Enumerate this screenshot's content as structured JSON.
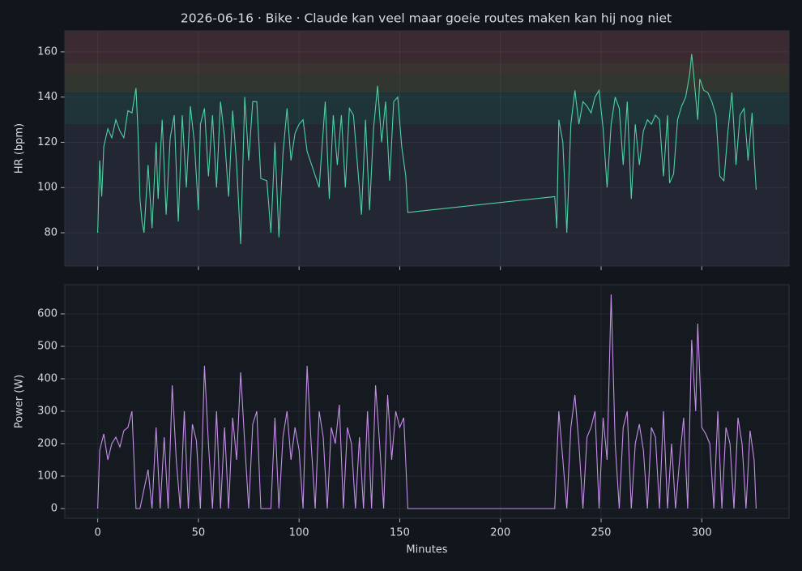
{
  "chart_data": [
    {
      "type": "line",
      "title": "2026-06-16 · Bike · Claude kan veel maar goeie routes maken kan hij nog niet",
      "ylabel": "HR (bpm)",
      "color": "#4fd1a5",
      "x": [
        0,
        1,
        2,
        3,
        5,
        7,
        9,
        11,
        13,
        15,
        17,
        19,
        20,
        21,
        22,
        23,
        25,
        27,
        29,
        30,
        32,
        34,
        36,
        38,
        40,
        42,
        44,
        46,
        48,
        50,
        51,
        53,
        55,
        57,
        59,
        61,
        63,
        65,
        67,
        69,
        71,
        73,
        75,
        77,
        79,
        81,
        84,
        86,
        88,
        90,
        92,
        94,
        96,
        98,
        100,
        102,
        104,
        107,
        110,
        113,
        115,
        117,
        119,
        121,
        123,
        125,
        127,
        129,
        131,
        133,
        135,
        137,
        139,
        141,
        143,
        145,
        147,
        149,
        151,
        153,
        154,
        227,
        228,
        229,
        231,
        233,
        235,
        237,
        239,
        241,
        243,
        245,
        247,
        249,
        251,
        253,
        255,
        257,
        259,
        261,
        263,
        265,
        267,
        269,
        271,
        273,
        275,
        277,
        279,
        281,
        283,
        284,
        286,
        288,
        290,
        292,
        294,
        295,
        296,
        298,
        299,
        301,
        303,
        305,
        307,
        309,
        311,
        313,
        315,
        317,
        319,
        321,
        323,
        325,
        326,
        327
      ],
      "values": [
        80,
        112,
        96,
        118,
        126,
        122,
        130,
        125,
        122,
        134,
        133,
        144,
        125,
        95,
        85,
        80,
        110,
        82,
        120,
        95,
        130,
        88,
        122,
        132,
        85,
        132,
        100,
        136,
        120,
        90,
        128,
        135,
        105,
        132,
        100,
        138,
        122,
        96,
        134,
        110,
        75,
        140,
        112,
        138,
        138,
        104,
        103,
        80,
        120,
        78,
        115,
        135,
        112,
        124,
        128,
        130,
        116,
        108,
        100,
        138,
        95,
        132,
        110,
        132,
        100,
        135,
        132,
        110,
        88,
        130,
        90,
        126,
        145,
        120,
        138,
        103,
        138,
        140,
        118,
        105,
        89,
        96,
        82,
        130,
        120,
        80,
        128,
        143,
        128,
        138,
        136,
        133,
        140,
        143,
        126,
        100,
        128,
        140,
        135,
        110,
        138,
        95,
        128,
        110,
        125,
        130,
        128,
        132,
        130,
        105,
        132,
        102,
        106,
        130,
        136,
        140,
        150,
        159,
        150,
        130,
        148,
        143,
        142,
        138,
        132,
        105,
        103,
        125,
        142,
        110,
        132,
        135,
        112,
        133,
        114,
        99
      ],
      "xlim": [
        -16.35,
        343.35
      ],
      "xticks": [
        0,
        50,
        100,
        150,
        200,
        250,
        300
      ],
      "ylim": [
        65.3,
        169.3
      ],
      "yticks": [
        80,
        100,
        120,
        140,
        160
      ],
      "grid": true,
      "zones": [
        {
          "from": 128,
          "to": 142,
          "color": "#1f3438"
        },
        {
          "from": 142,
          "to": 150,
          "color": "#31362e"
        },
        {
          "from": 150,
          "to": 155,
          "color": "#3b3330"
        },
        {
          "from": 155,
          "to": 169.3,
          "color": "#3b2a31"
        }
      ]
    },
    {
      "type": "line",
      "ylabel": "Power (W)",
      "xlabel": "Minutes",
      "color": "#c58fe8",
      "x": [
        0,
        1,
        3,
        5,
        7,
        9,
        11,
        13,
        15,
        17,
        19,
        21,
        23,
        25,
        27,
        29,
        31,
        33,
        35,
        37,
        39,
        41,
        43,
        45,
        47,
        49,
        51,
        53,
        55,
        57,
        59,
        61,
        63,
        65,
        67,
        69,
        71,
        73,
        75,
        77,
        79,
        81,
        84,
        86,
        88,
        90,
        92,
        94,
        96,
        98,
        100,
        102,
        104,
        106,
        108,
        110,
        112,
        114,
        116,
        118,
        120,
        122,
        124,
        126,
        128,
        130,
        132,
        134,
        136,
        138,
        140,
        142,
        144,
        146,
        148,
        150,
        152,
        154,
        227,
        229,
        231,
        233,
        235,
        237,
        239,
        241,
        243,
        245,
        247,
        249,
        251,
        253,
        255,
        257,
        259,
        261,
        263,
        265,
        267,
        269,
        271,
        273,
        275,
        277,
        279,
        281,
        283,
        285,
        287,
        289,
        291,
        293,
        295,
        297,
        298,
        300,
        302,
        304,
        306,
        308,
        310,
        312,
        314,
        316,
        318,
        320,
        322,
        324,
        326,
        327
      ],
      "values": [
        0,
        180,
        230,
        150,
        200,
        220,
        190,
        240,
        250,
        300,
        0,
        0,
        60,
        120,
        0,
        250,
        0,
        220,
        0,
        380,
        150,
        0,
        300,
        0,
        260,
        210,
        0,
        440,
        200,
        0,
        300,
        0,
        250,
        0,
        280,
        150,
        420,
        200,
        0,
        260,
        300,
        0,
        0,
        0,
        280,
        0,
        220,
        300,
        150,
        250,
        180,
        0,
        440,
        200,
        0,
        300,
        220,
        0,
        250,
        200,
        320,
        0,
        250,
        200,
        0,
        220,
        0,
        300,
        0,
        380,
        200,
        0,
        350,
        150,
        300,
        250,
        280,
        0,
        0,
        300,
        150,
        0,
        250,
        350,
        200,
        0,
        220,
        250,
        300,
        0,
        280,
        150,
        660,
        200,
        0,
        250,
        300,
        0,
        200,
        260,
        180,
        0,
        250,
        220,
        0,
        300,
        0,
        200,
        0,
        150,
        280,
        0,
        520,
        300,
        570,
        250,
        230,
        200,
        0,
        300,
        0,
        250,
        200,
        0,
        280,
        200,
        0,
        240,
        150,
        0
      ],
      "xlim": [
        -16.35,
        343.35
      ],
      "xticks": [
        0,
        50,
        100,
        150,
        200,
        250,
        300
      ],
      "ylim": [
        -30,
        690
      ],
      "yticks": [
        0,
        100,
        200,
        300,
        400,
        500,
        600
      ],
      "grid": true
    }
  ]
}
